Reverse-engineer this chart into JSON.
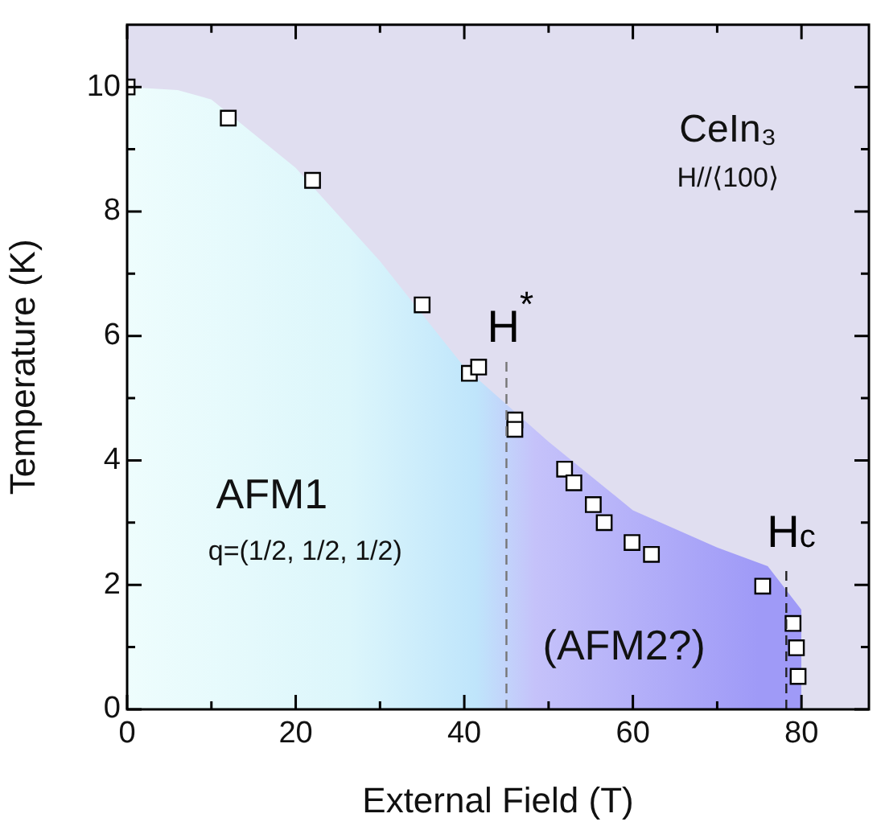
{
  "chart_data": {
    "type": "scatter",
    "xlabel": "External Field (T)",
    "ylabel": "Temperature (K)",
    "xlim": [
      0,
      88
    ],
    "xticks": [
      0,
      20,
      40,
      60,
      80
    ],
    "ylim": [
      0,
      11
    ],
    "yticks": [
      0,
      2,
      4,
      6,
      8,
      10
    ],
    "grid": false,
    "legend": false,
    "series": [
      {
        "type": "area",
        "color": "#9f9af7",
        "x": [
          0,
          6,
          10,
          20,
          30,
          40,
          45,
          50,
          60,
          70,
          76,
          80,
          80
        ],
        "values": [
          10,
          9.95,
          9.8,
          8.7,
          7.2,
          5.5,
          4.9,
          4.3,
          3.2,
          2.6,
          2.3,
          1.6,
          0
        ]
      },
      {
        "marker": "square",
        "color": "#ffffff",
        "x": [
          0,
          12,
          22,
          35,
          40.6,
          41.7,
          46,
          46,
          51.9,
          53,
          55.3,
          56.6,
          59.9,
          62.2,
          75.4,
          79,
          79.4,
          79.6
        ],
        "values": [
          10,
          9.5,
          8.5,
          6.5,
          5.4,
          5.5,
          4.65,
          4.5,
          3.86,
          3.64,
          3.29,
          3,
          2.68,
          2.49,
          1.98,
          1.38,
          0.99,
          0.53
        ]
      }
    ],
    "ref_lines": [
      {
        "axis": "x",
        "value": 45,
        "label": "H$^{*}$",
        "color": "#777777",
        "line_style": "dashed"
      },
      {
        "axis": "x",
        "value": 78.2,
        "label": "H$_{c}$",
        "color": "#222222",
        "line_style": "dashed"
      }
    ],
    "annotations": [
      "CeIn₃",
      "H//⟨100⟩",
      "AFM1",
      "q=(1/2, 1/2, 1/2)",
      "(AFM2?)"
    ]
  }
}
